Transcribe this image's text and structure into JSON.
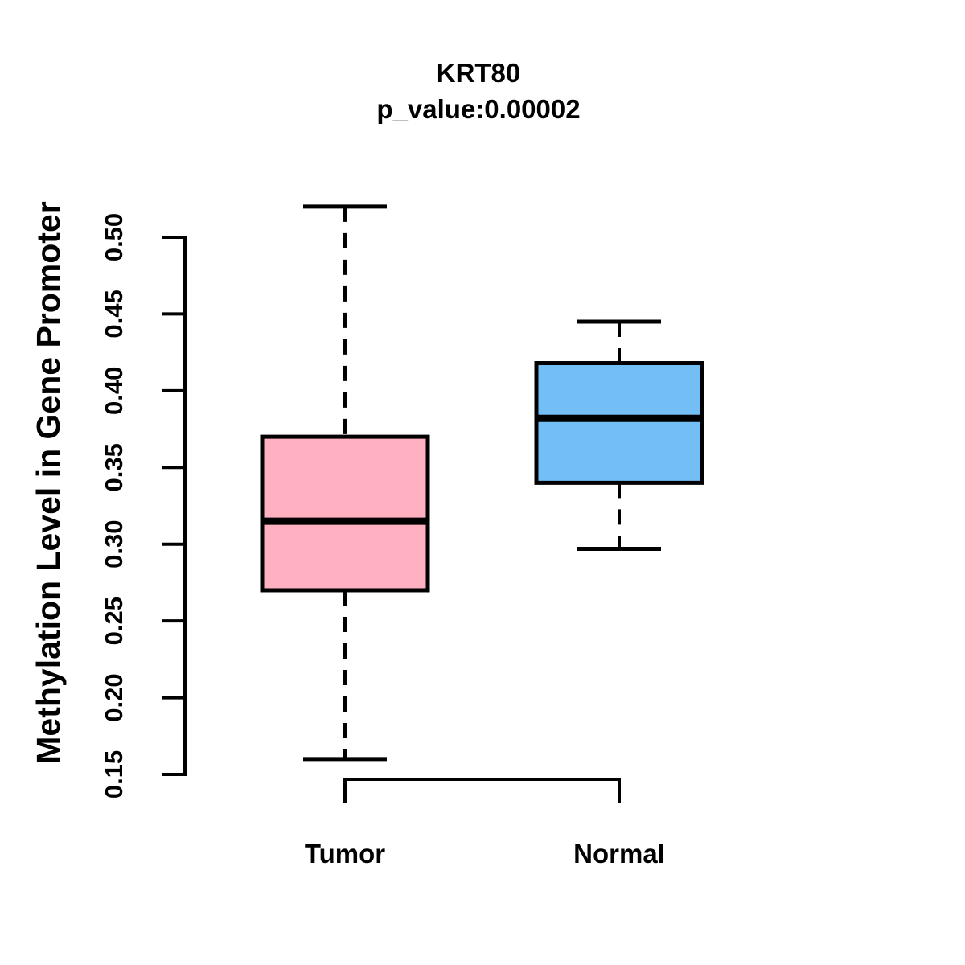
{
  "chart_data": {
    "type": "boxplot",
    "title": "KRT80",
    "subtitle": "p_value:0.00002",
    "ylabel": "Methylation Level in Gene Promoter",
    "xlabel": "",
    "ylim": [
      0.15,
      0.5
    ],
    "yticks": [
      "0.15",
      "0.20",
      "0.25",
      "0.30",
      "0.35",
      "0.40",
      "0.45",
      "0.50"
    ],
    "grid": false,
    "legend": "none",
    "categories": [
      "Tumor",
      "Normal"
    ],
    "groups": [
      {
        "label": "Tumor",
        "fill_color": "#FFB1C2",
        "stats": {
          "whisker_low": 0.16,
          "q1": 0.27,
          "median": 0.315,
          "q3": 0.37,
          "whisker_high": 0.52
        }
      },
      {
        "label": "Normal",
        "fill_color": "#73BEF5",
        "stats": {
          "whisker_low": 0.297,
          "q1": 0.34,
          "median": 0.382,
          "q3": 0.418,
          "whisker_high": 0.445
        }
      }
    ],
    "line_color": "#000000",
    "background_color": "#ffffff"
  }
}
